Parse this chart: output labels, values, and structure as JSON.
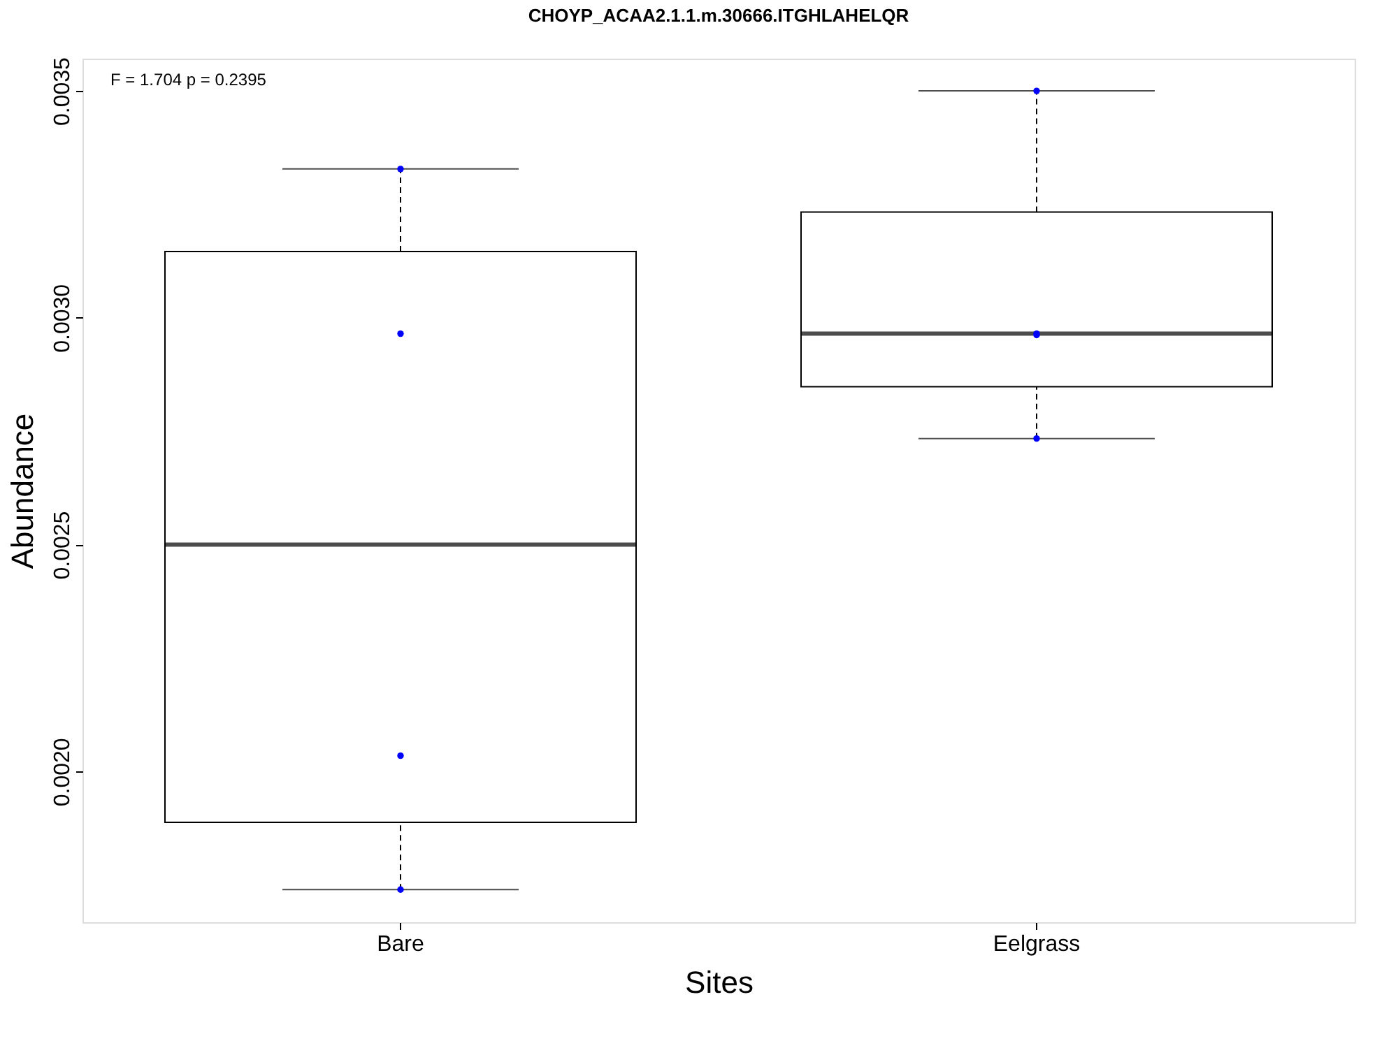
{
  "chart_data": {
    "type": "box",
    "title": "CHOYP_ACAA2.1.1.m.30666.ITGHLAHELQR",
    "xlabel": "Sites",
    "ylabel": "Abundance",
    "categories": [
      "Bare",
      "Eelgrass"
    ],
    "boxes": [
      {
        "low": 0.00174,
        "q1": 0.001888,
        "median": 0.0025,
        "q3": 0.003146,
        "high": 0.003328
      },
      {
        "low": 0.002734,
        "q1": 0.002848,
        "median": 0.002965,
        "q3": 0.003233,
        "high": 0.0035
      }
    ],
    "series": [
      {
        "type": "scatter",
        "x": [
          "Bare",
          "Bare",
          "Bare",
          "Bare",
          "Eelgrass",
          "Eelgrass",
          "Eelgrass",
          "Eelgrass"
        ],
        "values": [
          0.003328,
          0.002965,
          0.002035,
          0.00174,
          0.0035,
          0.002962,
          0.002965,
          0.002734
        ],
        "color": "#0000ff"
      }
    ],
    "marker": "circle",
    "ylim": [
      0.001668,
      0.003571
    ],
    "yticks": [
      {
        "value": 0.002,
        "label": "0.0020"
      },
      {
        "value": 0.0025,
        "label": "0.0025"
      },
      {
        "value": 0.003,
        "label": "0.0030"
      },
      {
        "value": 0.0035,
        "label": "0.0035"
      }
    ],
    "grid": false,
    "annotations": [
      "F = 1.704 p = 0.2395"
    ]
  }
}
